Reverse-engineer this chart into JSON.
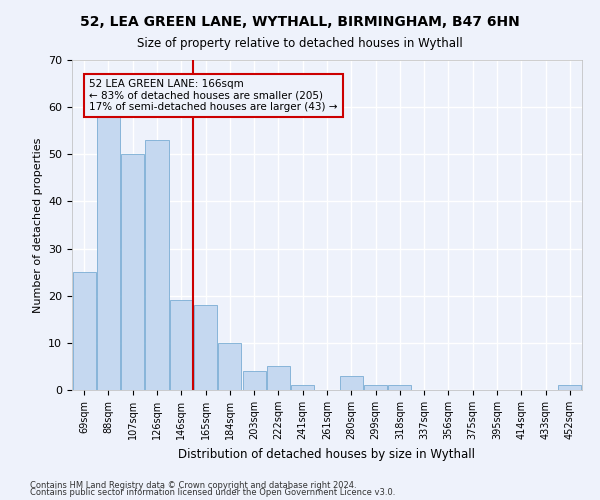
{
  "title1": "52, LEA GREEN LANE, WYTHALL, BIRMINGHAM, B47 6HN",
  "title2": "Size of property relative to detached houses in Wythall",
  "xlabel": "Distribution of detached houses by size in Wythall",
  "ylabel": "Number of detached properties",
  "categories": [
    "69sqm",
    "88sqm",
    "107sqm",
    "126sqm",
    "146sqm",
    "165sqm",
    "184sqm",
    "203sqm",
    "222sqm",
    "241sqm",
    "261sqm",
    "280sqm",
    "299sqm",
    "318sqm",
    "337sqm",
    "356sqm",
    "375sqm",
    "395sqm",
    "414sqm",
    "433sqm",
    "452sqm"
  ],
  "values": [
    25,
    58,
    50,
    53,
    19,
    18,
    10,
    4,
    5,
    1,
    0,
    3,
    1,
    1,
    0,
    0,
    0,
    0,
    0,
    0,
    1
  ],
  "bar_color": "#c5d8f0",
  "bar_edgecolor": "#7aadd4",
  "vline_x": 4.5,
  "vline_color": "#cc0000",
  "annotation_lines": [
    "52 LEA GREEN LANE: 166sqm",
    "← 83% of detached houses are smaller (205)",
    "17% of semi-detached houses are larger (43) →"
  ],
  "annotation_box_color": "#cc0000",
  "ylim": [
    0,
    70
  ],
  "yticks": [
    0,
    10,
    20,
    30,
    40,
    50,
    60,
    70
  ],
  "footnote1": "Contains HM Land Registry data © Crown copyright and database right 2024.",
  "footnote2": "Contains public sector information licensed under the Open Government Licence v3.0.",
  "background_color": "#eef2fb",
  "grid_color": "#ffffff"
}
